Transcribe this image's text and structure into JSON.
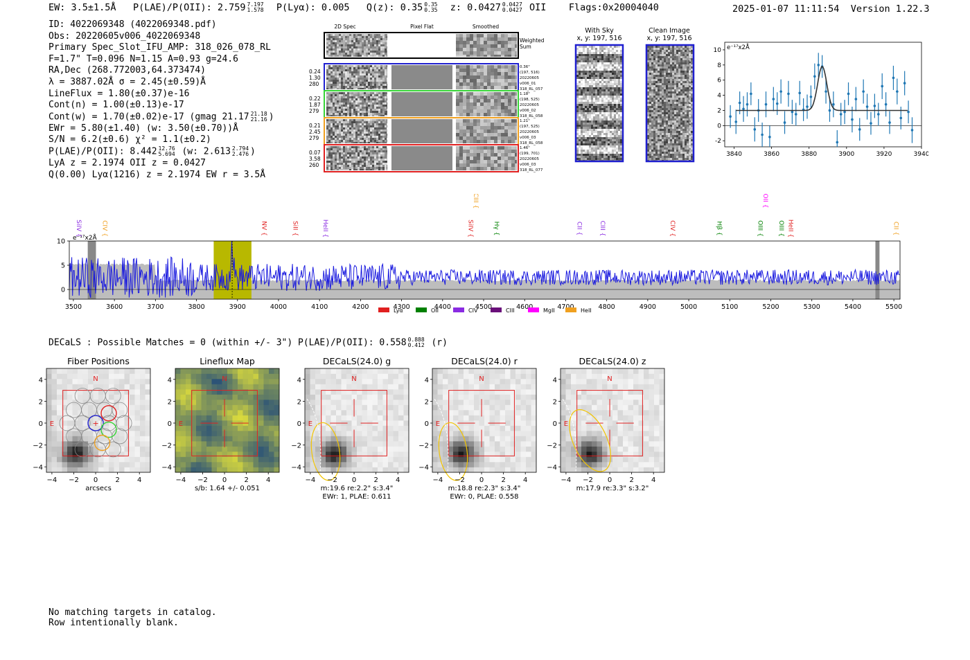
{
  "header": {
    "ew_label": "EW: 3.5±1.5Å",
    "plae_label": "P(LAE)/P(OII): 2.759",
    "plae_hi": "7.197",
    "plae_lo": "1.578",
    "plya": "P(Lyα): 0.005",
    "qz_label": "Q(z): 0.35",
    "qz_hi": "0.35",
    "qz_lo": "0.35",
    "z_label": "z: 0.0427",
    "z_hi": "0.0427",
    "z_lo": "0.0427",
    "z_line": "OII",
    "flags": "Flags:0x20004040",
    "datetime": "2025-01-07 11:11:54",
    "version": "Version 1.22.3"
  },
  "info": {
    "id": "ID: 4022069348 (4022069348.pdf)",
    "obs": "Obs: 20220605v006_4022069348",
    "primary": "Primary Spec_Slot_IFU_AMP: 318_026_078_RL",
    "params": "F=1.7\"  T=0.096  N=1.15  A=0.93  g=24.6",
    "radec": "RA,Dec (268.772003,64.373474)",
    "lambda": "λ = 3887.02Å  σ = 2.45(±0.59)Å",
    "lineflux": "LineFlux = 1.80(±0.37)e-16",
    "contn": "Cont(n) = 1.00(±0.13)e-17",
    "contw": "Cont(w) = 1.70(±0.02)e-17 (gmag 21.17",
    "contw_hi": "21.18",
    "contw_lo": "21.16",
    "contw_end": ")",
    "ewr": "EWr = 5.80(±1.40) (w: 3.50(±0.70))Å",
    "sn": "S/N = 6.2(±0.6)  χ² = 1.1(±0.2)",
    "plae": "P(LAE)/P(OII): 8.442",
    "plae_hi": "12.76",
    "plae_lo": "5.694",
    "plae_w": "(w: 2.613",
    "plae_w_hi": "2.794",
    "plae_w_lo": "2.476",
    "plae_end": ")",
    "lya": "LyA z = 2.1974  OII z = 0.0427",
    "q": "Q(0.00) Lyα(1216) z = 2.1974  EW r = 3.5Å"
  },
  "cutouts": {
    "headers": [
      "2D Spec",
      "Pixel Flat",
      "Smoothed"
    ],
    "weighted_label": [
      "Weighted",
      "Sum"
    ],
    "rows": [
      {
        "left": [
          "0.24",
          "1.30",
          "280"
        ],
        "right": [
          "0.36\"",
          "(197, 516)",
          "20220605",
          "v006_01",
          "318_RL_057"
        ],
        "color": "#1f1fd0"
      },
      {
        "left": [
          "0.22",
          "1.87",
          "279"
        ],
        "right": [
          "1.18\"",
          "(198, 525)",
          "20220605",
          "v006_02",
          "318_RL_058"
        ],
        "color": "#36d436"
      },
      {
        "left": [
          "0.21",
          "2.45",
          "279"
        ],
        "right": [
          "1.21\"",
          "(197, 525)",
          "20220605",
          "v006_03",
          "318_RL_058"
        ],
        "color": "#f0a020"
      },
      {
        "left": [
          "0.07",
          "3.58",
          "260"
        ],
        "right": [
          "1.46\"",
          "(199, 701)",
          "20220605",
          "v006_03",
          "318_RL_077"
        ],
        "color": "#e02020"
      }
    ]
  },
  "sky": {
    "with_sky_title": "With Sky",
    "with_sky_xy": "x, y: 197, 516",
    "clean_title": "Clean Image",
    "clean_xy": "x, y: 197, 516"
  },
  "colors": {
    "spectrum": "#1a1adf",
    "fit": "#333333",
    "errbar": "#1f77b4",
    "band": "#bdbdbd",
    "highlight": "#b8b800"
  },
  "chart_data": [
    {
      "type": "scatter",
      "name": "line-fit-zoom",
      "ylabel_text": "e⁻¹⁷x2Å",
      "xlim": [
        3835,
        3940
      ],
      "ylim": [
        -2.8,
        11
      ],
      "xticks": [
        3840,
        3860,
        3880,
        3900,
        3920,
        3940
      ],
      "yticks": [
        -2,
        0,
        2,
        4,
        6,
        8,
        10
      ],
      "x": [
        3838,
        3841,
        3843,
        3845,
        3847,
        3849,
        3851,
        3853,
        3855,
        3857,
        3859,
        3861,
        3863,
        3865,
        3867,
        3869,
        3871,
        3873,
        3875,
        3877,
        3879,
        3881,
        3883,
        3885,
        3887,
        3889,
        3891,
        3893,
        3895,
        3897,
        3899,
        3901,
        3903,
        3905,
        3907,
        3909,
        3911,
        3913,
        3915,
        3917,
        3919,
        3921,
        3923,
        3925,
        3927,
        3929,
        3931,
        3933,
        3935
      ],
      "y": [
        1.2,
        0.5,
        3.0,
        2.2,
        2.8,
        4.2,
        -0.5,
        2.0,
        -1.2,
        2.8,
        -1.5,
        3.5,
        2.9,
        4.5,
        0.4,
        4.2,
        1.8,
        1.5,
        4.3,
        2.1,
        2.5,
        3.8,
        6.5,
        8.0,
        7.8,
        4.5,
        2.0,
        2.8,
        -2.2,
        1.5,
        1.8,
        4.2,
        0.8,
        3.5,
        -0.5,
        4.5,
        2.5,
        0.3,
        2.6,
        1.5,
        5.2,
        2.8,
        0.4,
        6.3,
        4.5,
        1.0,
        5.6,
        1.8,
        -0.6
      ],
      "yerr": [
        1.5,
        1.6,
        1.5,
        1.7,
        1.6,
        1.5,
        1.6,
        1.5,
        1.6,
        1.7,
        1.5,
        1.6,
        1.5,
        1.6,
        1.5,
        1.7,
        1.6,
        1.5,
        1.6,
        1.5,
        1.6,
        1.5,
        1.7,
        1.6,
        1.5,
        1.6,
        1.5,
        1.7,
        1.6,
        1.5,
        1.6,
        1.5,
        1.7,
        1.6,
        1.5,
        1.6,
        1.7,
        1.5,
        1.6,
        1.5,
        1.7,
        1.6,
        1.5,
        1.6,
        1.7,
        1.5,
        1.6,
        1.5,
        1.7
      ],
      "fit": {
        "continuum": 2.0,
        "amplitude": 5.8,
        "center": 3887.02,
        "sigma": 2.45,
        "x_range": [
          3841,
          3933
        ]
      }
    },
    {
      "type": "line",
      "name": "full-spectrum",
      "ylabel_text": "e⁻¹⁷x2Å",
      "xlim": [
        3490,
        5515
      ],
      "ylim": [
        -2,
        10
      ],
      "xticks": [
        3500,
        3600,
        3700,
        3800,
        3900,
        4000,
        4100,
        4200,
        4300,
        4400,
        4500,
        4600,
        4700,
        4800,
        4900,
        5000,
        5100,
        5200,
        5300,
        5400,
        5500
      ],
      "yticks": [
        0,
        5,
        10
      ],
      "highlight_range": [
        3842,
        3934
      ],
      "line_center": 3887.02,
      "masked_ranges": [
        [
          3535,
          3555
        ],
        [
          5455,
          5465
        ]
      ],
      "noise": 2.2,
      "continuum": 2.5,
      "line_markers": [
        {
          "label": "SiIV",
          "x": 3509,
          "color": "#8a2be2",
          "row": 1
        },
        {
          "label": "CIV",
          "x": 3572,
          "color": "#f0a020",
          "row": 1
        },
        {
          "label": "NV",
          "x": 3960,
          "color": "#e02020",
          "row": 1
        },
        {
          "label": "SiII",
          "x": 4036,
          "color": "#e02020",
          "row": 1
        },
        {
          "label": "HeII",
          "x": 4110,
          "color": "#8a2be2",
          "row": 1
        },
        {
          "label": "CIII",
          "x": 4476,
          "color": "#f0a020",
          "row": 0
        },
        {
          "label": "SiIV",
          "x": 4464,
          "color": "#e02020",
          "row": 1
        },
        {
          "label": "Hγ",
          "x": 4527,
          "color": "#008000",
          "row": 1
        },
        {
          "label": "CII",
          "x": 4729,
          "color": "#8a2be2",
          "row": 1
        },
        {
          "label": "CIII",
          "x": 4785,
          "color": "#8a2be2",
          "row": 1
        },
        {
          "label": "CIV",
          "x": 4956,
          "color": "#e02020",
          "row": 1
        },
        {
          "label": "Hβ",
          "x": 5070,
          "color": "#008000",
          "row": 1
        },
        {
          "label": "OII",
          "x": 5182,
          "color": "#ff00ff",
          "row": 0
        },
        {
          "label": "OIII",
          "x": 5170,
          "color": "#008000",
          "row": 1
        },
        {
          "label": "OIII",
          "x": 5221,
          "color": "#008000",
          "row": 1
        },
        {
          "label": "HeII",
          "x": 5244,
          "color": "#e02020",
          "row": 1
        },
        {
          "label": "CII",
          "x": 5501,
          "color": "#f0a020",
          "row": 1
        }
      ],
      "legend": [
        {
          "label": "Lyα",
          "color": "#e02020"
        },
        {
          "label": "OII",
          "color": "#008000"
        },
        {
          "label": "CIV",
          "color": "#8a2be2"
        },
        {
          "label": "CIII",
          "color": "#6a0f7a"
        },
        {
          "label": "MgII",
          "color": "#ff00ff"
        },
        {
          "label": "HeII",
          "color": "#f0a020"
        }
      ]
    }
  ],
  "decals": {
    "summary": "DECaLS : Possible Matches = 0 (within +/- 3\")  P(LAE)/P(OII): 0.558",
    "sum_hi": "0.888",
    "sum_lo": "0.412",
    "sum_band": "(r)",
    "panels": [
      {
        "title": "Fiber Positions",
        "caption1": "arcsecs",
        "caption2": "",
        "compass_n": "N",
        "compass_e": "E"
      },
      {
        "title": "Lineflux Map",
        "caption1": "s/b: 1.64 +/- 0.051",
        "caption2": "",
        "compass_n": "N",
        "compass_e": "E"
      },
      {
        "title": "DECaLS(24.0) g",
        "caption1": "m:19.6  re:2.2\"  s:3.4\"",
        "caption2": "EWr: 1, PLAE: 0.611",
        "compass_n": "N",
        "compass_e": "E"
      },
      {
        "title": "DECaLS(24.0) r",
        "caption1": "m:18.8  re:2.3\"  s:3.4\"",
        "caption2": "EWr: 0, PLAE: 0.558",
        "compass_n": "N",
        "compass_e": "E"
      },
      {
        "title": "DECaLS(24.0) z",
        "caption1": "m:17.9  re:3.3\"  s:3.2\"",
        "caption2": "",
        "compass_n": "N",
        "compass_e": "E"
      }
    ],
    "axis_ticks": [
      "−4",
      "−2",
      "0",
      "2",
      "4"
    ]
  },
  "footer": {
    "line1": "No matching targets in catalog.",
    "line2": "Row intentionally blank."
  }
}
